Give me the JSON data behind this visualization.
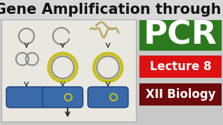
{
  "title": "Gene Amplification through",
  "title_fontsize": 15,
  "title_color": "#111111",
  "title_bg": "#e8e8e8",
  "pcr_text": "PCR",
  "pcr_fontsize": 34,
  "pcr_bg": "#2d7a1e",
  "pcr_text_color": "#ffffff",
  "lecture_text": "Lecture 8",
  "lecture_fontsize": 12,
  "lecture_bg": "#dd1111",
  "lecture_text_color": "#ffffff",
  "bio_text": "XII Biology",
  "bio_fontsize": 12,
  "bio_bg": "#6e0a0a",
  "bio_text_color": "#ffffff",
  "diagram_bg": "#f0f0f0",
  "diagram_border": "#bbbbbb",
  "background_color": "#c8c8c8"
}
